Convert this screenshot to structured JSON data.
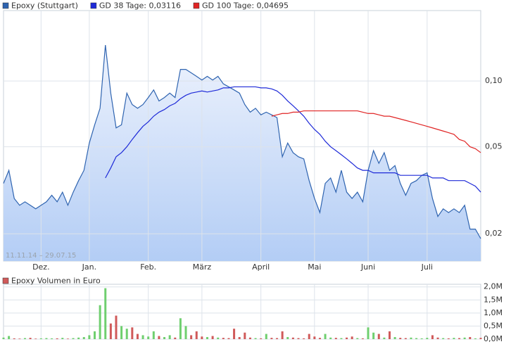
{
  "chart_data": [
    {
      "type": "line",
      "log_scale": true,
      "grid": true,
      "legend": "top-left",
      "date_range": "11.11.14 – 29.07.15",
      "categories": [
        null,
        null,
        null,
        null,
        null,
        null,
        null,
        "Dez.",
        null,
        null,
        null,
        null,
        null,
        null,
        null,
        null,
        "Jan.",
        null,
        null,
        null,
        null,
        null,
        null,
        null,
        null,
        null,
        null,
        "Feb.",
        null,
        null,
        null,
        null,
        null,
        null,
        null,
        null,
        null,
        "März",
        null,
        null,
        null,
        null,
        null,
        null,
        null,
        null,
        null,
        null,
        "April",
        null,
        null,
        null,
        null,
        null,
        null,
        null,
        null,
        null,
        "Mai",
        null,
        null,
        null,
        null,
        null,
        null,
        null,
        null,
        null,
        "Juni",
        null,
        null,
        null,
        null,
        null,
        null,
        null,
        null,
        null,
        null,
        "Juli",
        null,
        null,
        null,
        null,
        null,
        null,
        null,
        null,
        null,
        null
      ],
      "series": [
        {
          "name": "Epoxy (Stuttgart)",
          "color": "#2f64b0",
          "fill": true,
          "values": [
            0.034,
            0.039,
            0.029,
            0.027,
            0.028,
            0.027,
            0.026,
            0.027,
            0.028,
            0.03,
            0.028,
            0.031,
            0.027,
            0.031,
            0.035,
            0.039,
            0.052,
            0.063,
            0.075,
            0.146,
            0.088,
            0.061,
            0.063,
            0.088,
            0.078,
            0.075,
            0.078,
            0.084,
            0.091,
            0.081,
            0.084,
            0.088,
            0.084,
            0.113,
            0.113,
            0.109,
            0.105,
            0.101,
            0.105,
            0.101,
            0.105,
            0.097,
            0.094,
            0.091,
            0.088,
            0.078,
            0.072,
            0.075,
            0.07,
            0.072,
            0.07,
            0.068,
            0.045,
            0.052,
            0.047,
            0.045,
            0.044,
            0.035,
            0.029,
            0.025,
            0.034,
            0.036,
            0.031,
            0.039,
            0.031,
            0.029,
            0.031,
            0.028,
            0.039,
            0.048,
            0.042,
            0.047,
            0.039,
            0.041,
            0.034,
            0.03,
            0.034,
            0.035,
            0.037,
            0.038,
            0.029,
            0.024,
            0.026,
            0.025,
            0.026,
            0.025,
            0.027,
            0.021,
            0.021,
            0.019
          ]
        },
        {
          "name": "GD 38 Tage: 0,03116",
          "color": "#1e2ad8",
          "fill": false,
          "values": [
            null,
            null,
            null,
            null,
            null,
            null,
            null,
            null,
            null,
            null,
            null,
            null,
            null,
            null,
            null,
            null,
            null,
            null,
            null,
            0.036,
            0.04,
            0.045,
            0.047,
            0.05,
            0.054,
            0.058,
            0.062,
            0.065,
            0.069,
            0.072,
            0.074,
            0.077,
            0.079,
            0.083,
            0.086,
            0.088,
            0.089,
            0.09,
            0.089,
            0.09,
            0.091,
            0.093,
            0.093,
            0.094,
            0.094,
            0.094,
            0.094,
            0.094,
            0.093,
            0.093,
            0.092,
            0.09,
            0.086,
            0.081,
            0.077,
            0.073,
            0.069,
            0.064,
            0.06,
            0.057,
            0.053,
            0.05,
            0.048,
            0.046,
            0.044,
            0.042,
            0.04,
            0.039,
            0.039,
            0.038,
            0.038,
            0.038,
            0.038,
            0.038,
            0.037,
            0.037,
            0.037,
            0.037,
            0.037,
            0.037,
            0.036,
            0.036,
            0.036,
            0.035,
            0.035,
            0.035,
            0.035,
            0.034,
            0.033,
            0.031
          ]
        },
        {
          "name": "GD 100 Tage: 0,04695",
          "color": "#e02424",
          "fill": false,
          "values": [
            null,
            null,
            null,
            null,
            null,
            null,
            null,
            null,
            null,
            null,
            null,
            null,
            null,
            null,
            null,
            null,
            null,
            null,
            null,
            null,
            null,
            null,
            null,
            null,
            null,
            null,
            null,
            null,
            null,
            null,
            null,
            null,
            null,
            null,
            null,
            null,
            null,
            null,
            null,
            null,
            null,
            null,
            null,
            null,
            null,
            null,
            null,
            null,
            null,
            null,
            0.069,
            0.07,
            0.071,
            0.071,
            0.072,
            0.072,
            0.073,
            0.073,
            0.073,
            0.073,
            0.073,
            0.073,
            0.073,
            0.073,
            0.073,
            0.073,
            0.073,
            0.072,
            0.071,
            0.071,
            0.07,
            0.069,
            0.069,
            0.068,
            0.067,
            0.066,
            0.065,
            0.064,
            0.063,
            0.062,
            0.061,
            0.06,
            0.059,
            0.058,
            0.057,
            0.054,
            0.053,
            0.05,
            0.049,
            0.047
          ]
        }
      ],
      "ylim": [
        0.015,
        0.21
      ],
      "yticks": [
        {
          "value": 0.02,
          "label": "0,02"
        },
        {
          "value": 0.05,
          "label": "0,05"
        },
        {
          "value": 0.1,
          "label": "0,10"
        }
      ]
    },
    {
      "type": "bar",
      "title": "Epoxy Volumen in Euro",
      "color": "#d05a5a",
      "up_color": "#6fcf6f",
      "down_color": "#d05a5a",
      "grid": true,
      "values": [
        60000,
        120000,
        30000,
        20000,
        40000,
        50000,
        20000,
        30000,
        40000,
        30000,
        30000,
        50000,
        20000,
        40000,
        60000,
        80000,
        150000,
        300000,
        1300000,
        1950000,
        600000,
        900000,
        500000,
        400000,
        450000,
        200000,
        150000,
        100000,
        300000,
        120000,
        80000,
        150000,
        60000,
        800000,
        500000,
        150000,
        300000,
        100000,
        80000,
        120000,
        60000,
        50000,
        40000,
        400000,
        80000,
        250000,
        60000,
        40000,
        30000,
        200000,
        50000,
        40000,
        300000,
        80000,
        60000,
        40000,
        30000,
        200000,
        100000,
        50000,
        200000,
        60000,
        50000,
        40000,
        60000,
        100000,
        40000,
        30000,
        450000,
        250000,
        200000,
        60000,
        300000,
        80000,
        50000,
        40000,
        60000,
        40000,
        30000,
        50000,
        150000,
        60000,
        40000,
        30000,
        50000,
        40000,
        60000,
        80000,
        30000,
        50000
      ],
      "ylim": [
        0,
        2100000
      ],
      "yticks": [
        {
          "value": 0,
          "label": "0,0M"
        },
        {
          "value": 500000,
          "label": "0,5M"
        },
        {
          "value": 1000000,
          "label": "1,0M"
        },
        {
          "value": 1500000,
          "label": "1,5M"
        },
        {
          "value": 2000000,
          "label": "2,0M"
        }
      ]
    }
  ]
}
